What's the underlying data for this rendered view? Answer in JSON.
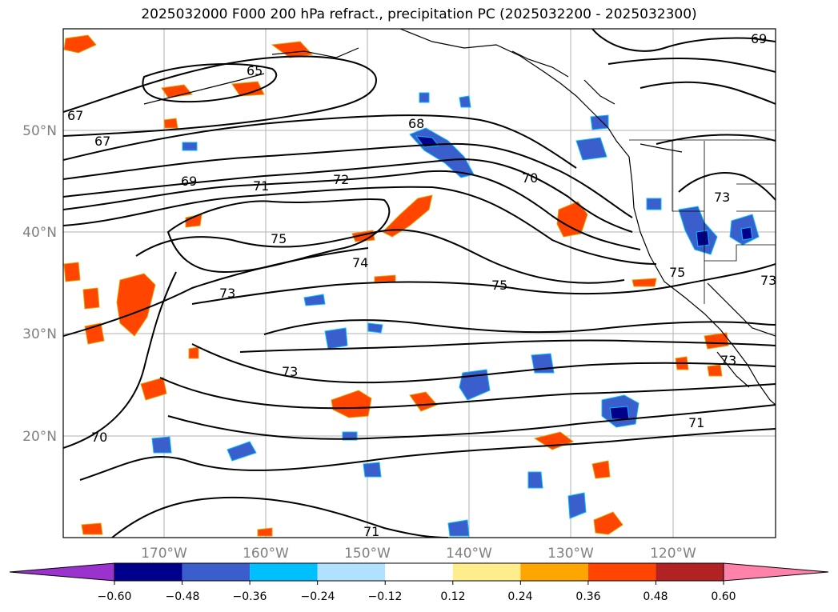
{
  "title": "2025032000 F000 200 hPa refract., precipitation PC (2025032200 - 2025032300)",
  "map": {
    "lat_labels": [
      "50°N",
      "40°N",
      "30°N",
      "20°N"
    ],
    "lon_labels": [
      "170°W",
      "160°W",
      "150°W",
      "140°W",
      "130°W",
      "120°W"
    ],
    "label_color": "#808080",
    "gridlines": true
  },
  "contour_labels": [
    "69",
    "65",
    "67",
    "67",
    "68",
    "69",
    "71",
    "72",
    "70",
    "73",
    "75",
    "74",
    "75",
    "75",
    "73",
    "73",
    "70",
    "71",
    "73",
    "71",
    "73"
  ],
  "colorbar": {
    "ticks": [
      "−0.60",
      "−0.48",
      "−0.36",
      "−0.24",
      "−0.12",
      "0.12",
      "0.24",
      "0.36",
      "0.48",
      "0.60"
    ],
    "colors": [
      "#9a32cd",
      "#00008b",
      "#3a5fcd",
      "#00bfff",
      "#b0e2ff",
      "#ffffff",
      "#ffec8b",
      "#ffa500",
      "#ff4500",
      "#b22222",
      "#ff82ab"
    ],
    "extend": "both"
  }
}
